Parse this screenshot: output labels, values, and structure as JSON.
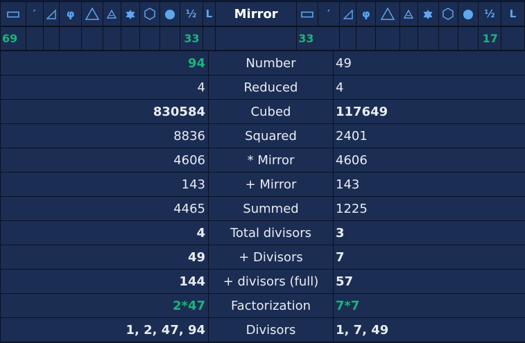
{
  "header": {
    "left_icons": [
      "rectangle-icon",
      "prime-icon",
      "right-triangle-icon",
      "phi-icon",
      "triangle-icon",
      "small-triangle-icon",
      "star-of-david-icon",
      "hexagon-icon",
      "circle-icon",
      "half-icon",
      "l-icon"
    ],
    "center_label": "Mirror",
    "right_icons": [
      "rectangle-icon",
      "prime-icon",
      "right-triangle-icon",
      "phi-icon",
      "triangle-icon",
      "small-triangle-icon",
      "star-of-david-icon",
      "hexagon-icon",
      "circle-icon",
      "half-icon",
      "l-icon"
    ],
    "phi": "φ",
    "half": "½",
    "l": "L",
    "prime": "′"
  },
  "indicators": {
    "left_first": "69",
    "left_half": "33",
    "right_first": "33",
    "right_half": "17"
  },
  "rows": [
    {
      "label": "Number",
      "left": "94",
      "right": "49"
    },
    {
      "label": "Reduced",
      "left": "4",
      "right": "4"
    },
    {
      "label": "Cubed",
      "left": "830584",
      "right": "117649"
    },
    {
      "label": "Squared",
      "left": "8836",
      "right": "2401"
    },
    {
      "label": "* Mirror",
      "left": "4606",
      "right": "4606"
    },
    {
      "label": "+ Mirror",
      "left": "143",
      "right": "143"
    },
    {
      "label": "Summed",
      "left": "4465",
      "right": "1225"
    },
    {
      "label": "Total divisors",
      "left": "4",
      "right": "3"
    },
    {
      "label": "+ Divisors",
      "left": "49",
      "right": "7"
    },
    {
      "label": "+ divisors (full)",
      "left": "144",
      "right": "57"
    },
    {
      "label": "Factorization",
      "left": "2*47",
      "right": "7*7"
    },
    {
      "label": "Divisors",
      "left": "1, 2, 47, 94",
      "right": "1, 7, 49"
    }
  ],
  "colors": {
    "background": "#1b2d52",
    "border": "#0a1224",
    "accent_green": "#19b57a",
    "icon_blue": "#5fa6ef",
    "text": "#e9ecf4"
  }
}
